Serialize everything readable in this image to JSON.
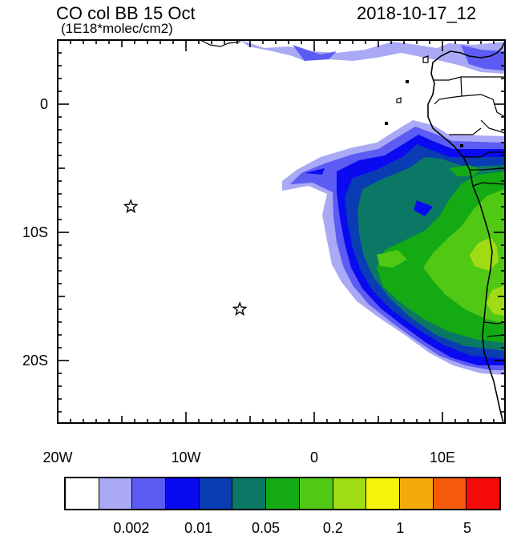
{
  "title_left": "CO col BB 15 Oct",
  "title_units": "(1E18*molec/cm2)",
  "title_right": "2018-10-17_12",
  "lat_labels": [
    {
      "label": "0",
      "lat": 0
    },
    {
      "label": "10S",
      "lat": -10
    },
    {
      "label": "20S",
      "lat": -20
    }
  ],
  "lon_labels": [
    {
      "label": "20W",
      "lon": -20
    },
    {
      "label": "10W",
      "lon": -10
    },
    {
      "label": "0",
      "lon": 0
    },
    {
      "label": "10E",
      "lon": 10
    }
  ],
  "markers": [
    {
      "lon": -14.3,
      "lat": -8.0,
      "symbol": "star"
    },
    {
      "lon": -5.8,
      "lat": -16.0,
      "symbol": "star"
    }
  ],
  "colorbar": {
    "colors": [
      "#ffffff",
      "#a9a9f5",
      "#5c5cf5",
      "#0a0af0",
      "#0a3cb4",
      "#0a7864",
      "#14aa14",
      "#50c814",
      "#a0dc14",
      "#f5f50a",
      "#f5aa0a",
      "#f55a0a",
      "#f50a0a"
    ],
    "tick_labels": [
      {
        "label": "0.002",
        "boundary": 2
      },
      {
        "label": "0.01",
        "boundary": 4
      },
      {
        "label": "0.05",
        "boundary": 6
      },
      {
        "label": "0.2",
        "boundary": 8
      },
      {
        "label": "1",
        "boundary": 10
      },
      {
        "label": "5",
        "boundary": 12
      }
    ]
  }
}
